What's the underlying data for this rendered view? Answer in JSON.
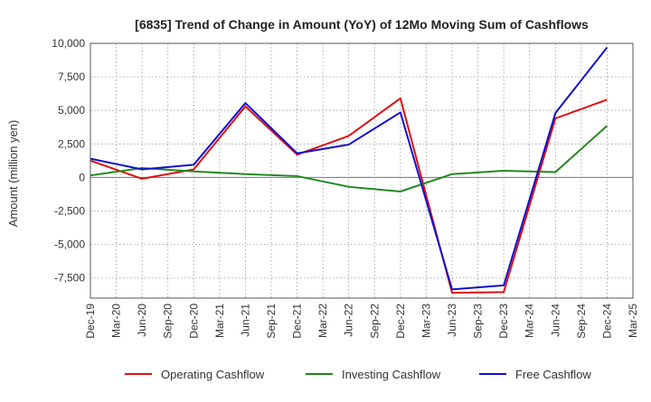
{
  "chart_data": {
    "type": "line",
    "title": "[6835]  Trend of Change in Amount (YoY) of 12Mo Moving Sum of Cashflows",
    "xlabel": "",
    "ylabel": "Amount (million yen)",
    "ylim": [
      -9000,
      10000
    ],
    "yticks": [
      10000,
      7500,
      5000,
      2500,
      0,
      -2500,
      -5000,
      -7500
    ],
    "ytick_labels": [
      "10,000",
      "7,500",
      "5,000",
      "2,500",
      "0",
      "-2,500",
      "-5,000",
      "-7,500"
    ],
    "categories": [
      "Dec-19",
      "Mar-20",
      "Jun-20",
      "Sep-20",
      "Dec-20",
      "Mar-21",
      "Jun-21",
      "Sep-21",
      "Dec-21",
      "Mar-22",
      "Jun-22",
      "Sep-22",
      "Dec-22",
      "Mar-23",
      "Jun-23",
      "Sep-23",
      "Dec-23",
      "Mar-24",
      "Jun-24",
      "Sep-24",
      "Dec-24",
      "Mar-25"
    ],
    "grid": true,
    "legend_position": "bottom",
    "series": [
      {
        "name": "Operating Cashflow",
        "color": "#dd1111",
        "points": [
          {
            "x": "Dec-19",
            "y": 1250
          },
          {
            "x": "Jun-20",
            "y": -100
          },
          {
            "x": "Dec-20",
            "y": 600
          },
          {
            "x": "Jun-21",
            "y": 5300
          },
          {
            "x": "Dec-21",
            "y": 1700
          },
          {
            "x": "Jun-22",
            "y": 3100
          },
          {
            "x": "Dec-22",
            "y": 5900
          },
          {
            "x": "Jun-23",
            "y": -8600
          },
          {
            "x": "Dec-23",
            "y": -8550
          },
          {
            "x": "Jun-24",
            "y": 4400
          },
          {
            "x": "Dec-24",
            "y": 5800
          }
        ]
      },
      {
        "name": "Investing Cashflow",
        "color": "#228822",
        "points": [
          {
            "x": "Dec-19",
            "y": 150
          },
          {
            "x": "Jun-20",
            "y": 700
          },
          {
            "x": "Dec-20",
            "y": 450
          },
          {
            "x": "Jun-21",
            "y": 250
          },
          {
            "x": "Dec-21",
            "y": 100
          },
          {
            "x": "Jun-22",
            "y": -700
          },
          {
            "x": "Dec-22",
            "y": -1050
          },
          {
            "x": "Jun-23",
            "y": 250
          },
          {
            "x": "Dec-23",
            "y": 500
          },
          {
            "x": "Jun-24",
            "y": 400
          },
          {
            "x": "Dec-24",
            "y": 3850
          }
        ]
      },
      {
        "name": "Free Cashflow",
        "color": "#1111cc",
        "points": [
          {
            "x": "Dec-19",
            "y": 1400
          },
          {
            "x": "Jun-20",
            "y": 600
          },
          {
            "x": "Dec-20",
            "y": 950
          },
          {
            "x": "Jun-21",
            "y": 5550
          },
          {
            "x": "Dec-21",
            "y": 1800
          },
          {
            "x": "Jun-22",
            "y": 2450
          },
          {
            "x": "Dec-22",
            "y": 4850
          },
          {
            "x": "Jun-23",
            "y": -8350
          },
          {
            "x": "Dec-23",
            "y": -8050
          },
          {
            "x": "Jun-24",
            "y": 4800
          },
          {
            "x": "Dec-24",
            "y": 9700
          }
        ]
      }
    ]
  }
}
